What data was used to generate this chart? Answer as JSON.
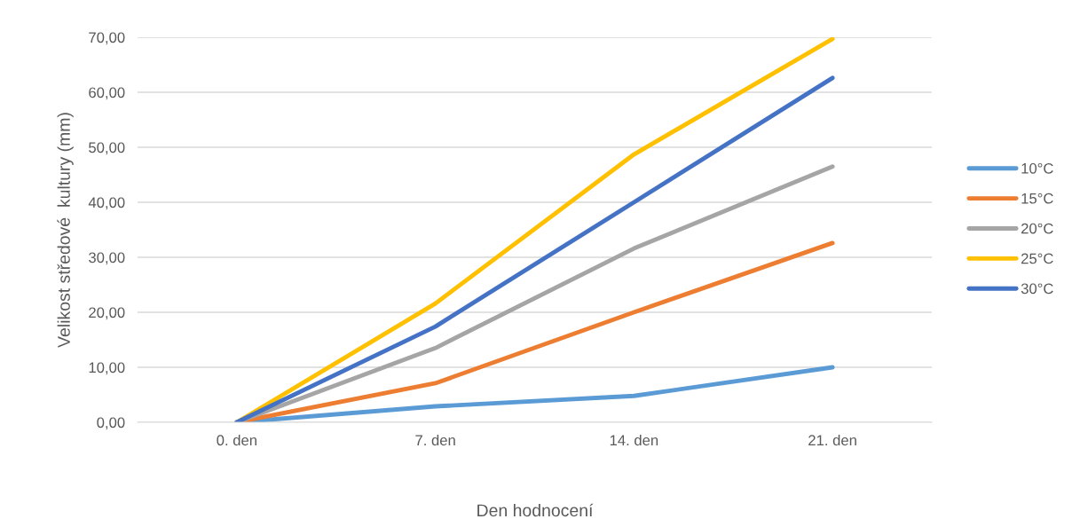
{
  "chart_data": {
    "type": "line",
    "xlabel": "Den hodnocení",
    "ylabel": "Velikost středové  kultury (mm)",
    "categories": [
      "0. den",
      "7. den",
      "14. den",
      "21. den"
    ],
    "series": [
      {
        "name": "10°C",
        "color": "#5b9bd5",
        "values": [
          0,
          2.9,
          4.8,
          10.0
        ]
      },
      {
        "name": "15°C",
        "color": "#ed7d31",
        "values": [
          0,
          7.1,
          20.0,
          32.6
        ]
      },
      {
        "name": "20°C",
        "color": "#a5a5a5",
        "values": [
          0,
          13.5,
          31.6,
          46.5
        ]
      },
      {
        "name": "25°C",
        "color": "#ffc000",
        "values": [
          0,
          21.6,
          48.7,
          69.7
        ]
      },
      {
        "name": "30°C",
        "color": "#4472c4",
        "values": [
          0,
          17.4,
          40.0,
          62.6
        ]
      }
    ],
    "ylim": [
      0,
      70
    ],
    "yticks": [
      {
        "value": 0,
        "label": "0,00"
      },
      {
        "value": 10,
        "label": "10,00"
      },
      {
        "value": 20,
        "label": "20,00"
      },
      {
        "value": 30,
        "label": "30,00"
      },
      {
        "value": 40,
        "label": "40,00"
      },
      {
        "value": 50,
        "label": "50,00"
      },
      {
        "value": 60,
        "label": "60,00"
      },
      {
        "value": 70,
        "label": "70,00"
      }
    ],
    "grid": "y",
    "legend": "right",
    "marker": "none",
    "line_style": "solid"
  }
}
